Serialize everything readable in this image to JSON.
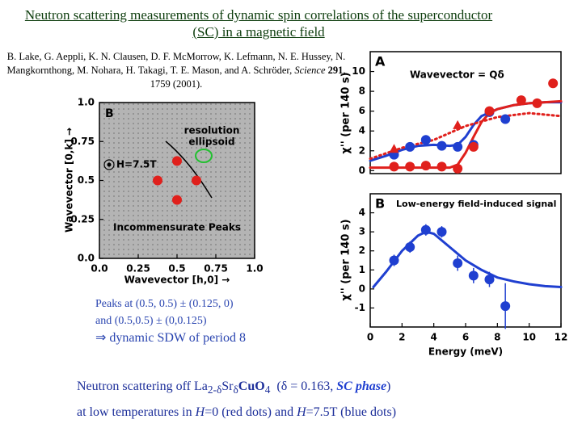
{
  "title": "Neutron scattering measurements of dynamic spin correlations of the superconductor (SC) in a magnetic field",
  "reference": {
    "authors": "B. Lake, G. Aeppli, K. N. Clausen, D. F. McMorrow, K. Lefmann, N. E. Hussey, N. Mangkornthong, M. Nohara, H. Takagi, T. E. Mason, and A. Schröder,",
    "journal": "Science",
    "volume": "291",
    "pages": ", 1759 (2001)."
  },
  "chart_data": [
    {
      "type": "scatter",
      "panel_label": "B",
      "xlabel": "Wavevector [h,0] →",
      "ylabel": "Wavevector [0,k] →",
      "xlim": [
        0,
        1
      ],
      "ylim": [
        0,
        1
      ],
      "xticks": [
        {
          "value": 0,
          "label": "0.0"
        },
        0.25,
        0.5,
        0.75,
        {
          "value": 1,
          "label": "1.0"
        }
      ],
      "yticks": [
        {
          "value": 0,
          "label": "0.0"
        },
        0.25,
        0.5,
        0.75,
        {
          "value": 1,
          "label": "1.0"
        }
      ],
      "annotations": {
        "resolution": [
          "resolution",
          "ellipsoid"
        ],
        "field": "H=7.5T",
        "peaks": "Incommensurate Peaks"
      },
      "series": [
        {
          "style": "points",
          "marker": "circle",
          "color": "#e0201c",
          "x": [
            0.375,
            0.625,
            0.5,
            0.5
          ],
          "values": [
            0.5,
            0.5,
            0.625,
            0.375
          ]
        }
      ]
    },
    {
      "type": "line",
      "panel_label": "A",
      "label": "Wavevector = Qδ",
      "ylabel": "χ'' (per 140 s)",
      "xlim": [
        0,
        12
      ],
      "ylim": [
        -0.3,
        12
      ],
      "yticks": [
        0,
        2,
        4,
        6,
        8,
        10
      ],
      "series": [
        {
          "style": "curve",
          "color": "#1f3fd0",
          "x": [
            0,
            1,
            2,
            3,
            4,
            5,
            5.5,
            6,
            6.5,
            7,
            8,
            9,
            10,
            11,
            12
          ],
          "values": [
            1.0,
            1.5,
            2.1,
            2.5,
            2.6,
            2.5,
            2.6,
            3.4,
            4.6,
            5.5,
            6.2,
            6.6,
            6.8,
            6.9,
            6.9
          ]
        },
        {
          "style": "curve",
          "color": "#e0201c",
          "x": [
            0,
            1,
            2,
            3,
            4,
            5,
            5.5,
            6,
            6.5,
            7,
            7.5,
            8,
            9,
            10,
            11,
            12
          ],
          "values": [
            0.3,
            0.3,
            0.3,
            0.3,
            0.3,
            0.3,
            0.6,
            1.8,
            3.4,
            4.9,
            5.8,
            6.2,
            6.6,
            6.8,
            6.9,
            7.0
          ]
        },
        {
          "style": "dotted",
          "color": "#e0201c",
          "x": [
            0,
            2,
            4,
            6,
            8,
            10,
            12
          ],
          "values": [
            1.2,
            2.3,
            3.1,
            4.5,
            5.4,
            5.8,
            5.5
          ]
        },
        {
          "style": "points",
          "marker": "circle",
          "color": "#1f3fd0",
          "x": [
            1.5,
            2.5,
            3.5,
            4.5,
            5.5,
            6.5,
            7.5,
            8.5
          ],
          "values": [
            1.6,
            2.4,
            3.1,
            2.5,
            2.4,
            2.6,
            5.9,
            5.2
          ]
        },
        {
          "style": "points",
          "marker": "circle",
          "color": "#e0201c",
          "x": [
            1.5,
            2.5,
            3.5,
            4.5,
            5.5,
            6.5,
            7.5,
            9.5,
            10.5,
            11.5
          ],
          "values": [
            0.4,
            0.4,
            0.5,
            0.4,
            0.2,
            2.4,
            6.0,
            7.1,
            6.8,
            8.8
          ]
        },
        {
          "style": "points",
          "marker": "triangle",
          "color": "#e0201c",
          "x": [
            1.5,
            5.5
          ],
          "values": [
            2.2,
            4.6
          ]
        }
      ]
    },
    {
      "type": "line",
      "panel_label": "B",
      "title": "Low-energy field-induced signal",
      "ylabel": "χ'' (per 140 s)",
      "xlabel": "Energy (meV)",
      "xlim": [
        0,
        12
      ],
      "ylim": [
        -2,
        5
      ],
      "xticks": [
        0,
        2,
        4,
        6,
        8,
        10,
        12
      ],
      "yticks": [
        -1,
        0,
        1,
        2,
        3,
        4
      ],
      "series": [
        {
          "style": "curve",
          "color": "#1f3fd0",
          "x": [
            0.2,
            1,
            2,
            3,
            3.5,
            4,
            5,
            6,
            7,
            8,
            9,
            10,
            11,
            12
          ],
          "values": [
            0.1,
            0.9,
            2.0,
            2.8,
            3.0,
            2.9,
            2.2,
            1.5,
            1.0,
            0.6,
            0.4,
            0.25,
            0.15,
            0.1
          ]
        },
        {
          "style": "points",
          "marker": "circle",
          "color": "#1f3fd0",
          "x": [
            1.5,
            2.5,
            3.5,
            4.5,
            5.5,
            6.5,
            7.5,
            8.5
          ],
          "values": [
            1.5,
            2.2,
            3.1,
            3.0,
            1.35,
            0.7,
            0.5,
            -0.9
          ],
          "errors": [
            0.3,
            0.3,
            0.3,
            0.3,
            0.4,
            0.4,
            0.4,
            1.2
          ]
        }
      ]
    }
  ],
  "notes": [
    "Peaks at (0.5, 0.5) ± (0.125, 0)",
    "and (0.5,0.5) ± (0,0.125)",
    "⇒  dynamic SDW of period 8"
  ],
  "footer": {
    "line1": {
      "text1": "Neutron scattering off La",
      "sub1": "2-δ",
      "text2": "Sr",
      "sub2": "δ",
      "text3": "CuO",
      "sub3": "4",
      "text4": "  (δ = 0.163,",
      "highlight": "SC phase",
      "text5": ")"
    },
    "line2": {
      "text1": "at low temperatures in",
      "var1": "H",
      "text2": "=0 (red dots) and",
      "var2": "H",
      "text3": "=7.5T (blue dots)"
    }
  }
}
